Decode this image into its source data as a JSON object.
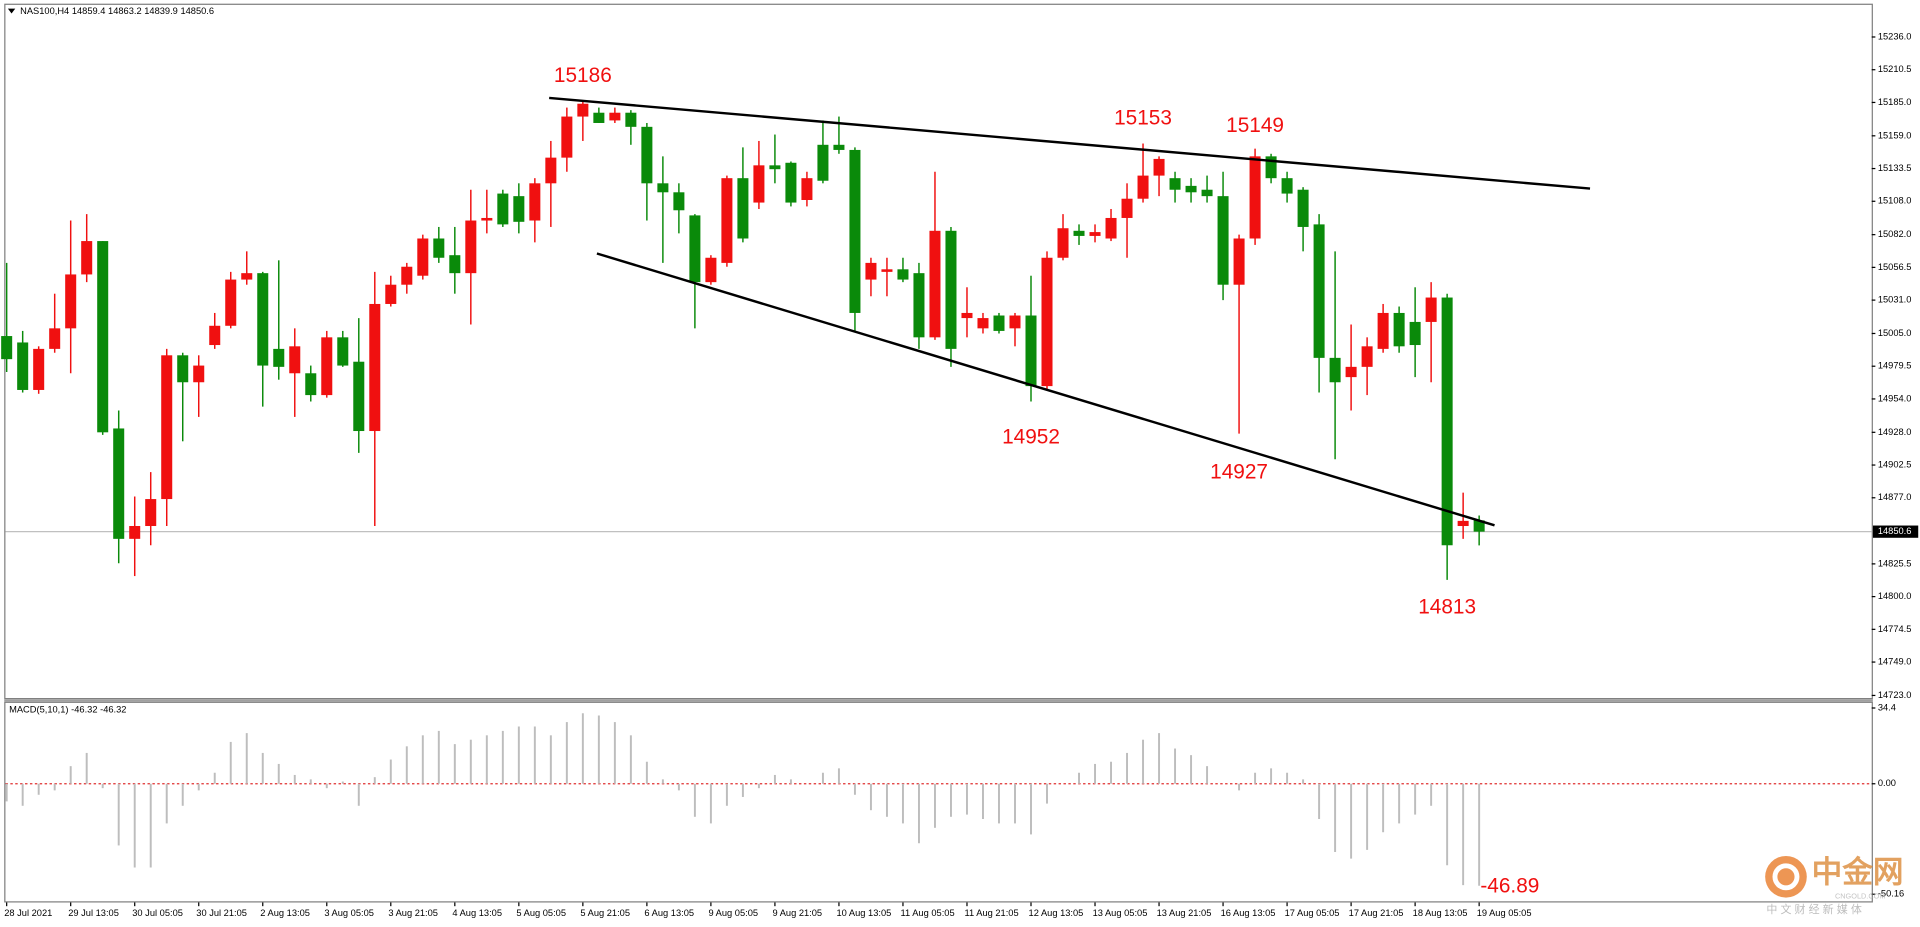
{
  "chart_data": [
    {
      "type": "candlestick",
      "title": "NAS100,H4",
      "categories": [
        "28 Jul 2021",
        null,
        null,
        null,
        "29 Jul 13:05",
        null,
        null,
        null,
        "30 Jul 05:05",
        null,
        null,
        null,
        "30 Jul 21:05",
        null,
        null,
        null,
        "2 Aug 13:05",
        null,
        null,
        null,
        "3 Aug 05:05",
        null,
        null,
        null,
        "3 Aug 21:05",
        null,
        null,
        null,
        "4 Aug 13:05",
        null,
        null,
        null,
        "5 Aug 05:05",
        null,
        null,
        null,
        "5 Aug 21:05",
        null,
        null,
        null,
        "6 Aug 13:05",
        null,
        null,
        null,
        "9 Aug 05:05",
        null,
        null,
        null,
        "9 Aug 21:05",
        null,
        null,
        null,
        "10 Aug 13:05",
        null,
        null,
        null,
        "11 Aug 05:05",
        null,
        null,
        null,
        "11 Aug 21:05",
        null,
        null,
        null,
        "12 Aug 13:05",
        null,
        null,
        null,
        "13 Aug 05:05",
        null,
        null,
        null,
        "13 Aug 21:05",
        null,
        null,
        null,
        "16 Aug 13:05",
        null,
        null,
        null,
        "17 Aug 05:05",
        null,
        null,
        null,
        "17 Aug 21:05",
        null,
        null,
        null,
        "18 Aug 13:05",
        null,
        null,
        null,
        "19 Aug 05:05"
      ],
      "ohlc": [
        [
          15003,
          15060,
          14975,
          14985
        ],
        [
          14998,
          15007,
          14959,
          14961
        ],
        [
          14961,
          14995,
          14958,
          14993
        ],
        [
          14993,
          15036,
          14990,
          15009
        ],
        [
          15009,
          15093,
          14974,
          15051
        ],
        [
          15051,
          15098,
          15045,
          15077
        ],
        [
          15077,
          15077,
          14926,
          14928
        ],
        [
          14931,
          14945,
          14826,
          14845
        ],
        [
          14845,
          14878,
          14816,
          14855
        ],
        [
          14855,
          14897,
          14840,
          14876
        ],
        [
          14876,
          14993,
          14855,
          14988
        ],
        [
          14988,
          14990,
          14921,
          14967
        ],
        [
          14967,
          14988,
          14940,
          14980
        ],
        [
          14996,
          15021,
          14993,
          15011
        ],
        [
          15011,
          15053,
          15009,
          15047
        ],
        [
          15047,
          15069,
          15043,
          15052
        ],
        [
          15052,
          15053,
          14948,
          14980
        ],
        [
          14993,
          15062,
          14969,
          14979
        ],
        [
          14974,
          15009,
          14940,
          14995
        ],
        [
          14974,
          14980,
          14952,
          14957
        ],
        [
          14957,
          15007,
          14955,
          15002
        ],
        [
          15002,
          15007,
          14979,
          14980
        ],
        [
          14983,
          15017,
          14912,
          14929
        ],
        [
          14929,
          15053,
          14855,
          15028
        ],
        [
          15028,
          15050,
          15026,
          15043
        ],
        [
          15043,
          15060,
          15036,
          15057
        ],
        [
          15050,
          15082,
          15047,
          15079
        ],
        [
          15079,
          15088,
          15060,
          15064
        ],
        [
          15066,
          15088,
          15036,
          15052
        ],
        [
          15052,
          15117,
          15012,
          15093
        ],
        [
          15093,
          15117,
          15083,
          15095
        ],
        [
          15114,
          15117,
          15088,
          15090
        ],
        [
          15112,
          15122,
          15083,
          15092
        ],
        [
          15093,
          15126,
          15076,
          15122
        ],
        [
          15122,
          15155,
          15088,
          15142
        ],
        [
          15142,
          15181,
          15131,
          15174
        ],
        [
          15174,
          15186,
          15155,
          15184
        ],
        [
          15177,
          15181,
          15169,
          15169
        ],
        [
          15171,
          15181,
          15169,
          15177
        ],
        [
          15177,
          15179,
          15152,
          15166
        ],
        [
          15166,
          15169,
          15093,
          15122
        ],
        [
          15122,
          15143,
          15060,
          15115
        ],
        [
          15115,
          15122,
          15083,
          15101
        ],
        [
          15097,
          15098,
          15009,
          15045
        ],
        [
          15045,
          15066,
          15043,
          15064
        ],
        [
          15060,
          15128,
          15057,
          15126
        ],
        [
          15126,
          15150,
          15076,
          15079
        ],
        [
          15107,
          15155,
          15102,
          15136
        ],
        [
          15136,
          15160,
          15122,
          15133
        ],
        [
          15138,
          15139,
          15104,
          15107
        ],
        [
          15109,
          15131,
          15104,
          15126
        ],
        [
          15152,
          15171,
          15122,
          15124
        ],
        [
          15152,
          15174,
          15145,
          15148
        ],
        [
          15148,
          15150,
          15007,
          15021
        ],
        [
          15047,
          15064,
          15034,
          15060
        ],
        [
          15053,
          15064,
          15034,
          15055
        ],
        [
          15055,
          15064,
          15045,
          15047
        ],
        [
          15052,
          15060,
          14993,
          15002
        ],
        [
          15002,
          15131,
          15000,
          15085
        ],
        [
          15085,
          15088,
          14979,
          14993
        ],
        [
          15017,
          15041,
          15002,
          15021
        ],
        [
          15009,
          15021,
          15005,
          15017
        ],
        [
          15019,
          15021,
          15005,
          15007
        ],
        [
          15009,
          15021,
          14995,
          15019
        ],
        [
          15019,
          15050,
          14952,
          14964
        ],
        [
          14964,
          15069,
          14961,
          15064
        ],
        [
          15064,
          15098,
          15062,
          15087
        ],
        [
          15085,
          15090,
          15074,
          15081
        ],
        [
          15081,
          15090,
          15076,
          15084
        ],
        [
          15079,
          15102,
          15077,
          15095
        ],
        [
          15095,
          15122,
          15064,
          15110
        ],
        [
          15110,
          15153,
          15107,
          15128
        ],
        [
          15128,
          15143,
          15112,
          15141
        ],
        [
          15126,
          15131,
          15107,
          15117
        ],
        [
          15120,
          15126,
          15107,
          15115
        ],
        [
          15117,
          15128,
          15107,
          15112
        ],
        [
          15112,
          15131,
          15031,
          15043
        ],
        [
          15043,
          15082,
          14927,
          15079
        ],
        [
          15079,
          15149,
          15074,
          15143
        ],
        [
          15143,
          15145,
          15122,
          15126
        ],
        [
          15126,
          15131,
          15107,
          15114
        ],
        [
          15117,
          15119,
          15069,
          15088
        ],
        [
          15090,
          15098,
          14959,
          14986
        ],
        [
          14986,
          15069,
          14907,
          14967
        ],
        [
          14971,
          15012,
          14945,
          14979
        ],
        [
          14979,
          15002,
          14957,
          14995
        ],
        [
          14993,
          15028,
          14990,
          15021
        ],
        [
          15021,
          15026,
          14990,
          14995
        ],
        [
          15014,
          15041,
          14971,
          14996
        ],
        [
          15014,
          15045,
          14967,
          15033
        ],
        [
          15033,
          15036,
          14813,
          14840
        ],
        [
          14855,
          14881,
          14845,
          14859
        ],
        [
          14859.4,
          14863.2,
          14839.9,
          14850.6
        ]
      ],
      "up_color": "#f01010",
      "down_color": "#0a8a0a",
      "ylim": [
        14721,
        15261
      ],
      "yticks": [
        {
          "value": 15236,
          "label": "15236.0"
        },
        15210.5,
        {
          "value": 15185,
          "label": "15185.0"
        },
        {
          "value": 15159,
          "label": "15159.0"
        },
        15133.5,
        {
          "value": 15108,
          "label": "15108.0"
        },
        {
          "value": 15082,
          "label": "15082.0"
        },
        15056.5,
        {
          "value": 15031,
          "label": "15031.0"
        },
        {
          "value": 15005,
          "label": "15005.0"
        },
        14979.5,
        {
          "value": 14954,
          "label": "14954.0"
        },
        {
          "value": 14928,
          "label": "14928.0"
        },
        14902.5,
        {
          "value": 14877,
          "label": "14877.0"
        },
        14825.5,
        {
          "value": 14800,
          "label": "14800.0"
        },
        14774.5,
        {
          "value": 14749,
          "label": "14749.0"
        },
        {
          "value": 14723,
          "label": "14723.0"
        }
      ],
      "current_price": 14850.6,
      "annotations": [
        15186,
        15153,
        15149,
        14952,
        14927,
        14813
      ],
      "annotation_color": "#f01010"
    },
    {
      "type": "bar",
      "title": "MACD(5,10,1)",
      "values": [
        -8,
        -10,
        -5,
        -3,
        8,
        14,
        -2,
        -28,
        -38,
        -38,
        -18,
        -10,
        -3,
        5,
        19,
        23,
        14,
        9,
        4,
        2,
        -2,
        1,
        -10,
        3,
        11,
        17,
        22,
        24,
        18,
        20,
        22,
        24,
        26,
        26,
        22,
        28,
        32,
        31,
        28,
        22,
        10,
        2,
        -3,
        -15,
        -18,
        -10,
        -6,
        -2,
        4,
        2,
        0,
        5,
        7,
        -5,
        -12,
        -15,
        -18,
        -27,
        -20,
        -15,
        -14,
        -16,
        -18,
        -18,
        -23,
        -9,
        0,
        5,
        9,
        10,
        14,
        20,
        23,
        16,
        13,
        8,
        0,
        -3,
        5,
        7,
        5,
        2,
        -16,
        -31,
        -34,
        -30,
        -22,
        -18,
        -14,
        -10,
        -37,
        -46,
        -46.32
      ],
      "color": "#bdbdbd",
      "ylim": [
        -52.8,
        35.6
      ],
      "yticks": [
        34.4,
        {
          "value": 0,
          "label": "0.00"
        },
        -50.16
      ],
      "annotations": [
        -46.89
      ],
      "annotation_color": "#f01010"
    }
  ],
  "watermark": {
    "brand": "中金网",
    "domain": "CNGOLD.COM",
    "slogan": "中 文 财 经 新 媒 体"
  }
}
